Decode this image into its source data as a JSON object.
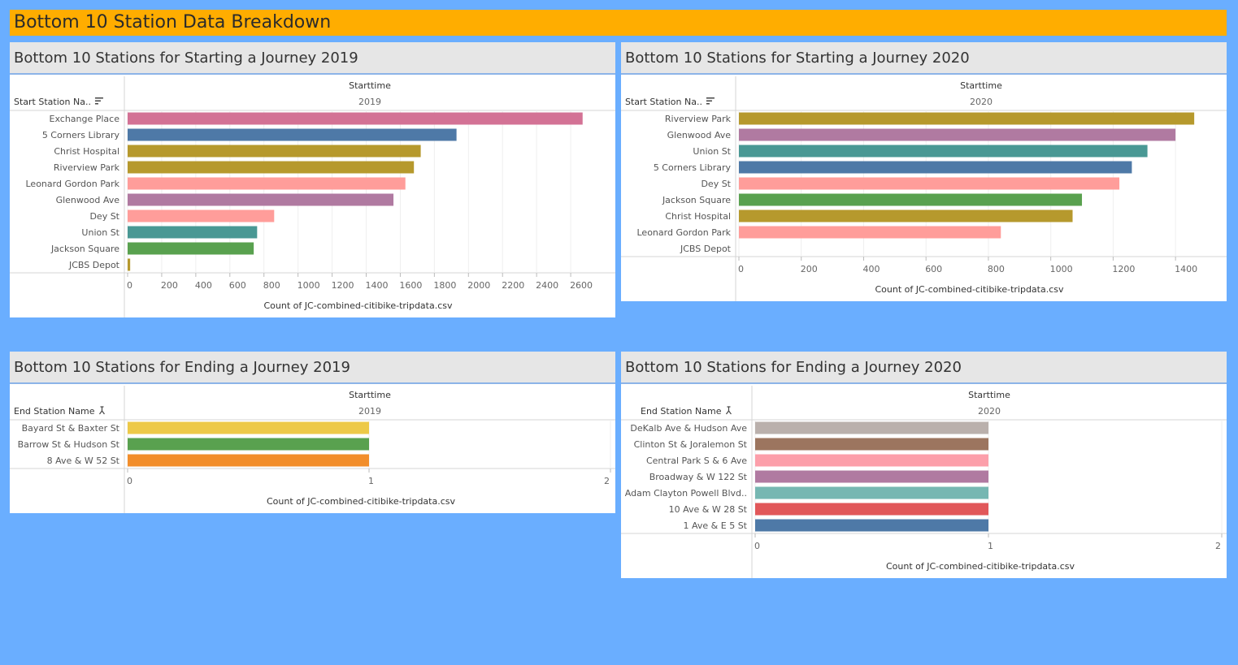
{
  "dashboard": {
    "title": "Bottom 10 Station Data Breakdown"
  },
  "chart_data": [
    {
      "id": "start2019",
      "type": "bar",
      "title": "Bottom 10 Stations for Starting a Journey 2019",
      "column_header": "Starttime",
      "column_value": "2019",
      "row_header": "Start Station Na..",
      "xlabel": "Count of JC-combined-citibike-tripdata.csv",
      "xlim": [
        0,
        2800
      ],
      "ticks": [
        0,
        200,
        400,
        600,
        800,
        1000,
        1200,
        1400,
        1600,
        1800,
        2000,
        2200,
        2400,
        2600
      ],
      "categories": [
        "Exchange Place",
        "5 Corners Library",
        "Christ Hospital",
        "Riverview Park",
        "Leonard Gordon Park",
        "Glenwood Ave",
        "Dey St",
        "Union St",
        "Jackson Square",
        "JCBS Depot"
      ],
      "values": [
        2670,
        1930,
        1720,
        1680,
        1630,
        1560,
        860,
        760,
        740,
        15
      ],
      "colors": [
        "#d37295",
        "#4e79a7",
        "#b6992d",
        "#b6992d",
        "#ff9d9a",
        "#b07aa1",
        "#ff9d9a",
        "#499894",
        "#59a14f",
        "#b6992d"
      ]
    },
    {
      "id": "start2020",
      "type": "bar",
      "title": "Bottom 10 Stations for Starting a Journey 2020",
      "column_header": "Starttime",
      "column_value": "2020",
      "row_header": "Start Station Na..",
      "xlabel": "Count of JC-combined-citibike-tripdata.csv",
      "xlim": [
        0,
        1530
      ],
      "ticks": [
        0,
        200,
        400,
        600,
        800,
        1000,
        1200,
        1400
      ],
      "categories": [
        "Riverview Park",
        "Glenwood Ave",
        "Union St",
        "5 Corners Library",
        "Dey St",
        "Jackson Square",
        "Christ Hospital",
        "Leonard Gordon Park",
        "JCBS Depot"
      ],
      "values": [
        1460,
        1400,
        1310,
        1260,
        1220,
        1100,
        1070,
        840,
        0
      ],
      "colors": [
        "#b6992d",
        "#b07aa1",
        "#499894",
        "#4e79a7",
        "#ff9d9a",
        "#59a14f",
        "#b6992d",
        "#ff9d9a",
        "#b6992d"
      ]
    },
    {
      "id": "end2019",
      "type": "bar",
      "title": "Bottom 10 Stations for Ending a Journey 2019",
      "column_header": "Starttime",
      "column_value": "2019",
      "row_header": "End Station Name",
      "xlabel": "Count of JC-combined-citibike-tripdata.csv",
      "xlim": [
        0,
        2
      ],
      "ticks": [
        0,
        1,
        2
      ],
      "categories": [
        "Bayard St & Baxter St",
        "Barrow St & Hudson St",
        "8 Ave & W 52 St"
      ],
      "values": [
        1,
        1,
        1
      ],
      "colors": [
        "#edc948",
        "#59a14f",
        "#f28e2b"
      ]
    },
    {
      "id": "end2020",
      "type": "bar",
      "title": "Bottom 10 Stations for Ending a Journey 2020",
      "column_header": "Starttime",
      "column_value": "2020",
      "row_header": "End Station Name",
      "xlabel": "Count of JC-combined-citibike-tripdata.csv",
      "xlim": [
        0,
        2
      ],
      "ticks": [
        0,
        1,
        2
      ],
      "categories": [
        "DeKalb Ave & Hudson Ave",
        "Clinton St & Joralemon St",
        "Central Park S & 6 Ave",
        "Broadway & W 122 St",
        "Adam Clayton Powell Blvd..",
        "10 Ave & W 28 St",
        "1 Ave & E 5 St"
      ],
      "values": [
        1,
        1,
        1,
        1,
        1,
        1,
        1
      ],
      "colors": [
        "#bab0ac",
        "#9c755f",
        "#fc9faa",
        "#b07aa1",
        "#76b7b2",
        "#e15759",
        "#4e79a7"
      ]
    }
  ]
}
